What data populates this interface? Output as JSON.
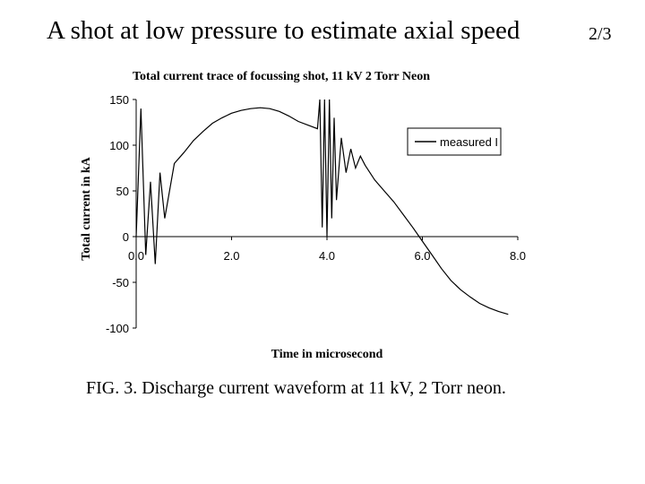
{
  "slide": {
    "title": "A shot at low pressure to estimate axial speed",
    "counter": "2/3",
    "caption": "FIG. 3. Discharge current waveform at 11 kV, 2 Torr neon."
  },
  "chart_data": {
    "type": "line",
    "title": "Total current trace of focussing shot, 11 kV 2 Torr Neon",
    "xlabel": "Time in microsecond",
    "ylabel": "Total current in kA",
    "xlim": [
      0,
      8
    ],
    "ylim": [
      -100,
      150
    ],
    "x_ticks": [
      "0.0",
      "2.0",
      "4.0",
      "6.0",
      "8.0"
    ],
    "y_ticks": [
      "150",
      "100",
      "50",
      "0",
      "-50",
      "-100"
    ],
    "grid": false,
    "legend": {
      "placement": "top-right",
      "entries": [
        "measured I"
      ]
    },
    "line_color": "#000000",
    "series": [
      {
        "name": "measured I",
        "x": [
          0.0,
          0.1,
          0.2,
          0.3,
          0.4,
          0.5,
          0.6,
          0.8,
          1.0,
          1.2,
          1.4,
          1.6,
          1.8,
          2.0,
          2.2,
          2.4,
          2.6,
          2.8,
          3.0,
          3.2,
          3.4,
          3.6,
          3.8,
          3.85,
          3.9,
          3.95,
          4.0,
          4.05,
          4.1,
          4.15,
          4.2,
          4.3,
          4.4,
          4.5,
          4.6,
          4.7,
          4.8,
          5.0,
          5.2,
          5.4,
          5.6,
          5.8,
          6.0,
          6.2,
          6.4,
          6.6,
          6.8,
          7.0,
          7.2,
          7.4,
          7.6,
          7.8
        ],
        "y": [
          0,
          140,
          -20,
          60,
          -30,
          70,
          20,
          80,
          92,
          105,
          115,
          124,
          130,
          135,
          138,
          140,
          141,
          140,
          137,
          132,
          126,
          122,
          118,
          150,
          10,
          150,
          0,
          150,
          20,
          130,
          40,
          108,
          70,
          96,
          75,
          88,
          78,
          62,
          50,
          38,
          24,
          10,
          -5,
          -20,
          -35,
          -48,
          -58,
          -66,
          -73,
          -78,
          -82,
          -85
        ]
      }
    ]
  }
}
